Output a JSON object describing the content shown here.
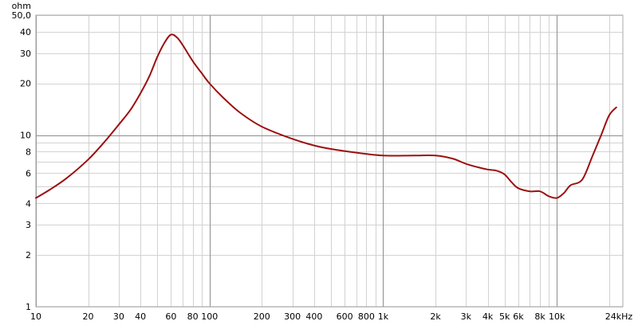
{
  "chart_data": {
    "type": "line",
    "xscale": "log",
    "yscale": "log",
    "xlim": [
      10,
      24000
    ],
    "ylim": [
      1,
      50
    ],
    "grid": true,
    "y_unit": "ohm",
    "x_unit": "24kHz",
    "x_ticks": [
      {
        "v": 10,
        "label": "10"
      },
      {
        "v": 20,
        "label": "20"
      },
      {
        "v": 30,
        "label": "30"
      },
      {
        "v": 40,
        "label": "40"
      },
      {
        "v": 60,
        "label": "60"
      },
      {
        "v": 80,
        "label": "80"
      },
      {
        "v": 100,
        "label": "100"
      },
      {
        "v": 200,
        "label": "200"
      },
      {
        "v": 300,
        "label": "300"
      },
      {
        "v": 400,
        "label": "400"
      },
      {
        "v": 600,
        "label": "600"
      },
      {
        "v": 800,
        "label": "800"
      },
      {
        "v": 1000,
        "label": "1k"
      },
      {
        "v": 2000,
        "label": "2k"
      },
      {
        "v": 3000,
        "label": "3k"
      },
      {
        "v": 4000,
        "label": "4k"
      },
      {
        "v": 5000,
        "label": "5k"
      },
      {
        "v": 6000,
        "label": "6k"
      },
      {
        "v": 8000,
        "label": "8k"
      },
      {
        "v": 10000,
        "label": "10k"
      }
    ],
    "y_ticks": [
      {
        "v": 1,
        "label": "1"
      },
      {
        "v": 2,
        "label": "2"
      },
      {
        "v": 3,
        "label": "3"
      },
      {
        "v": 4,
        "label": "4"
      },
      {
        "v": 6,
        "label": "6"
      },
      {
        "v": 8,
        "label": "8"
      },
      {
        "v": 10,
        "label": "10"
      },
      {
        "v": 20,
        "label": "20"
      },
      {
        "v": 30,
        "label": "30"
      },
      {
        "v": 40,
        "label": "40"
      },
      {
        "v": 50,
        "label": "50,0"
      }
    ],
    "series": [
      {
        "color": "#9b1010",
        "x": [
          10,
          12,
          15,
          20,
          25,
          30,
          35,
          40,
          45,
          50,
          55,
          60,
          65,
          70,
          80,
          90,
          100,
          120,
          150,
          200,
          300,
          400,
          500,
          700,
          1000,
          1500,
          2000,
          2500,
          3000,
          3500,
          4000,
          4500,
          5000,
          5500,
          6000,
          7000,
          8000,
          9000,
          10000,
          11000,
          12000,
          14000,
          16000,
          18000,
          20000,
          22000
        ],
        "y": [
          4.3,
          4.8,
          5.6,
          7.2,
          9.2,
          11.5,
          14.0,
          17.5,
          22.0,
          28.5,
          34.5,
          38.5,
          37.0,
          33.5,
          27.0,
          23.0,
          20.0,
          16.5,
          13.5,
          11.2,
          9.5,
          8.7,
          8.3,
          7.9,
          7.6,
          7.6,
          7.6,
          7.3,
          6.8,
          6.5,
          6.3,
          6.2,
          5.9,
          5.3,
          4.9,
          4.7,
          4.7,
          4.4,
          4.3,
          4.6,
          5.1,
          5.5,
          7.5,
          10.0,
          13.0,
          14.5
        ]
      }
    ]
  }
}
